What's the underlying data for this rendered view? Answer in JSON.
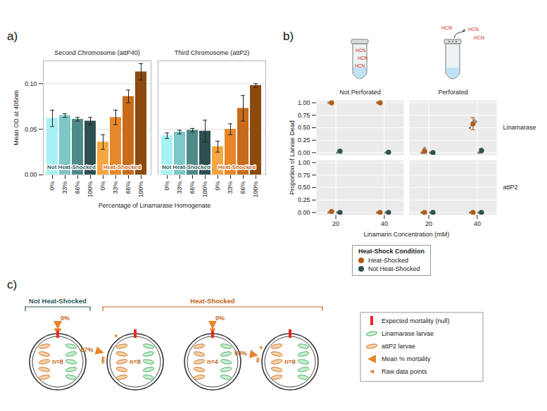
{
  "chart_data": [
    {
      "type": "bar",
      "panel": "a)",
      "y_label": "Mean OD at 405nm",
      "x_label": "Percentage of Linamarase Homogenate",
      "ylim": [
        0,
        0.125
      ],
      "yticks": [
        {
          "value": 0,
          "label": "0.00"
        },
        {
          "value": 0.05,
          "label": "0.05"
        },
        {
          "value": 0.1,
          "label": "0.10"
        }
      ],
      "grid": true,
      "facets": [
        {
          "title": "Second Chromosome (attP40)",
          "groups": [
            {
              "name": "Not Heat-Shocked",
              "color": "#2E5A5A",
              "categories": [
                "0%",
                "33%",
                "66%",
                "100%"
              ],
              "values": [
                0.062,
                0.065,
                0.061,
                0.059
              ],
              "errors": [
                0.009,
                0.002,
                0.002,
                0.004
              ],
              "colors": [
                "#A6F2F5",
                "#7CC7C7",
                "#4E8A8A",
                "#2E4F4F"
              ]
            },
            {
              "name": "Heat-Shocked",
              "color": "#C4651A",
              "categories": [
                "0%",
                "33%",
                "66%",
                "100%"
              ],
              "values": [
                0.036,
                0.063,
                0.086,
                0.113
              ],
              "errors": [
                0.008,
                0.008,
                0.007,
                0.009
              ],
              "colors": [
                "#F5A63E",
                "#E8862A",
                "#C96C1A",
                "#8C4A0E"
              ]
            }
          ]
        },
        {
          "title": "Third Chromosome (attP2)",
          "groups": [
            {
              "name": "Not Heat-Shocked",
              "color": "#2E5A5A",
              "categories": [
                "0%",
                "33%",
                "66%",
                "100%"
              ],
              "values": [
                0.043,
                0.047,
                0.049,
                0.048
              ],
              "errors": [
                0.003,
                0.002,
                0.002,
                0.012
              ],
              "colors": [
                "#A6F2F5",
                "#7CC7C7",
                "#4E8A8A",
                "#2E4F4F"
              ]
            },
            {
              "name": "Heat-Shocked",
              "color": "#C4651A",
              "categories": [
                "0%",
                "33%",
                "66%",
                "100%"
              ],
              "values": [
                0.031,
                0.05,
                0.073,
                0.098
              ],
              "errors": [
                0.006,
                0.006,
                0.014,
                0.002
              ],
              "colors": [
                "#F5A63E",
                "#E8862A",
                "#C96C1A",
                "#8C4A0E"
              ]
            }
          ]
        }
      ]
    },
    {
      "type": "scatter",
      "panel": "b)",
      "x_label": "Linamarin Concentration (mM)",
      "y_label": "Proportion of Larvae Dead",
      "xlim": [
        12,
        48
      ],
      "xticks": [
        20,
        40
      ],
      "ylim": [
        -0.05,
        1.05
      ],
      "yticks": [
        {
          "value": 0,
          "label": "0.00"
        },
        {
          "value": 0.25,
          "label": "0.25"
        },
        {
          "value": 0.5,
          "label": "0.50"
        },
        {
          "value": 0.75,
          "label": "0.75"
        },
        {
          "value": 1,
          "label": "1.00"
        }
      ],
      "grid": true,
      "columns": [
        "Not Perforated",
        "Perforated"
      ],
      "rows": [
        "Linamarase",
        "attP2"
      ],
      "tube_label": "HCN",
      "legend_title": "Heat-Shock Condition",
      "legend": "bottom",
      "series": [
        {
          "name": "Heat-Shocked",
          "color": "#B35C12",
          "points": [
            {
              "column": "Not Perforated",
              "row": "Linamarase",
              "x": 20,
              "mean": 1,
              "error": 0,
              "raw": [
                1,
                1,
                1
              ]
            },
            {
              "column": "Not Perforated",
              "row": "Linamarase",
              "x": 40,
              "mean": 1,
              "error": 0,
              "raw": [
                1,
                1,
                1
              ]
            },
            {
              "column": "Perforated",
              "row": "Linamarase",
              "x": 20,
              "mean": 0.03,
              "error": 0.04,
              "raw": [
                0,
                0,
                0.1,
                0
              ]
            },
            {
              "column": "Perforated",
              "row": "Linamarase",
              "x": 40,
              "mean": 0.58,
              "error": 0.12,
              "raw": [
                0.5,
                0.55,
                0.6,
                0.65,
                0.62
              ]
            },
            {
              "column": "Not Perforated",
              "row": "attP2",
              "x": 20,
              "mean": 0.02,
              "error": 0.02,
              "raw": [
                0,
                0,
                0.05
              ]
            },
            {
              "column": "Not Perforated",
              "row": "attP2",
              "x": 40,
              "mean": 0,
              "error": 0,
              "raw": [
                0,
                0,
                0
              ]
            },
            {
              "column": "Perforated",
              "row": "attP2",
              "x": 20,
              "mean": 0,
              "error": 0,
              "raw": [
                0,
                0,
                0
              ]
            },
            {
              "column": "Perforated",
              "row": "attP2",
              "x": 40,
              "mean": 0,
              "error": 0,
              "raw": [
                0,
                0,
                0
              ]
            }
          ]
        },
        {
          "name": "Not Heat-Shocked",
          "color": "#2E5252",
          "points": [
            {
              "column": "Not Perforated",
              "row": "Linamarase",
              "x": 20,
              "mean": 0.03,
              "error": 0.02,
              "raw": [
                0,
                0.05,
                0.05
              ]
            },
            {
              "column": "Not Perforated",
              "row": "Linamarase",
              "x": 40,
              "mean": 0.01,
              "error": 0.01,
              "raw": [
                0,
                0,
                0.02
              ]
            },
            {
              "column": "Perforated",
              "row": "Linamarase",
              "x": 20,
              "mean": 0,
              "error": 0,
              "raw": [
                0,
                0,
                0
              ]
            },
            {
              "column": "Perforated",
              "row": "Linamarase",
              "x": 40,
              "mean": 0.04,
              "error": 0.04,
              "raw": [
                0,
                0,
                0.08,
                0.05
              ]
            },
            {
              "column": "Not Perforated",
              "row": "attP2",
              "x": 20,
              "mean": 0,
              "error": 0,
              "raw": [
                0,
                0,
                0
              ]
            },
            {
              "column": "Not Perforated",
              "row": "attP2",
              "x": 40,
              "mean": 0,
              "error": 0,
              "raw": [
                0,
                0,
                0
              ]
            },
            {
              "column": "Perforated",
              "row": "attP2",
              "x": 20,
              "mean": 0,
              "error": 0,
              "raw": [
                0,
                0,
                0
              ]
            },
            {
              "column": "Perforated",
              "row": "attP2",
              "x": 40,
              "mean": 0,
              "error": 0,
              "raw": [
                0,
                0,
                0
              ]
            }
          ]
        }
      ]
    }
  ],
  "panel_c": {
    "panel": "c)",
    "groups": [
      {
        "label": "Not Heat-Shocked",
        "dishes": 1
      },
      {
        "label": "Heat-Shocked",
        "dishes": 3
      }
    ],
    "dishes": [
      {
        "n_label": "n=8",
        "mean_mortality": 0,
        "mortality_label": "0%",
        "raw": [
          0,
          0,
          0
        ]
      },
      {
        "n_label": "n=8",
        "mean_mortality": 87,
        "mortality_label": "87%",
        "raw": [
          100,
          100,
          100,
          50
        ]
      },
      {
        "n_label": "n=4",
        "mean_mortality": 0,
        "mortality_label": "0%",
        "raw": [
          0,
          0
        ]
      },
      {
        "n_label": "n=9",
        "mean_mortality": 93,
        "mortality_label": "93%",
        "raw": [
          100,
          100,
          80
        ]
      }
    ],
    "legend": {
      "expected": "Expected mortality (null)",
      "linamarase": "Linamarase larvae",
      "attp2": "attP2 larvae",
      "mean": "Mean % mortality",
      "raw": "Raw data points"
    }
  }
}
